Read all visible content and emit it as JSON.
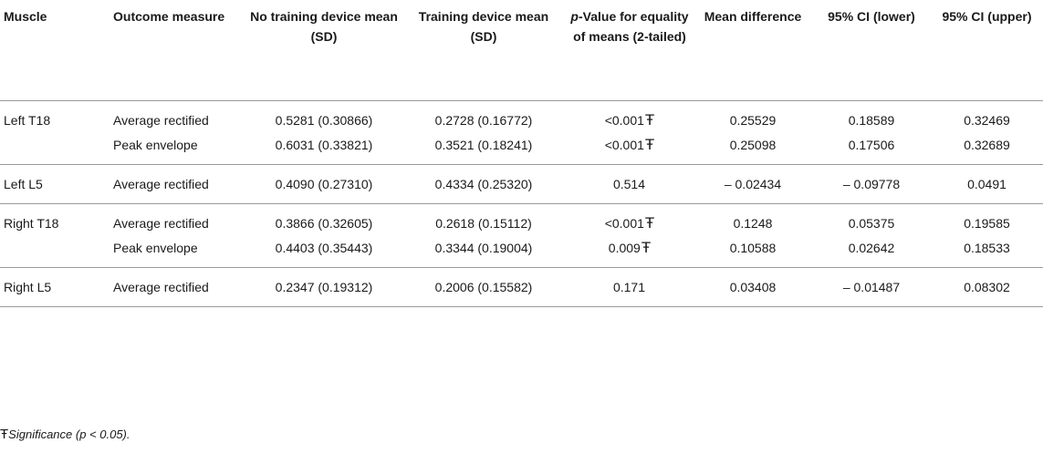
{
  "headers": {
    "muscle": "Muscle",
    "outcome": "Outcome measure",
    "no_training": "No training device mean (SD)",
    "training": "Training device mean (SD)",
    "p_prefix": "p",
    "p_rest": "-Value for equality of means (2-tailed)",
    "mean_diff": "Mean difference",
    "ci_lower": "95% CI (lower)",
    "ci_upper": "95% CI (upper)"
  },
  "sig_symbol": "Ŧ",
  "rows": [
    {
      "muscle": "Left T18",
      "outcome": "Average rectified",
      "no_training": "0.5281 (0.30866)",
      "training": "0.2728 (0.16772)",
      "p": "<0.001",
      "sig": "Ŧ",
      "mean_diff": "0.25529",
      "ci_lower": "0.18589",
      "ci_upper": "0.32469"
    },
    {
      "muscle": "",
      "outcome": "Peak envelope",
      "no_training": "0.6031 (0.33821)",
      "training": "0.3521 (0.18241)",
      "p": "<0.001",
      "sig": "Ŧ",
      "mean_diff": "0.25098",
      "ci_lower": "0.17506",
      "ci_upper": "0.32689"
    },
    {
      "muscle": "Left L5",
      "outcome": "Average rectified",
      "no_training": "0.4090 (0.27310)",
      "training": "0.4334 (0.25320)",
      "p": "0.514",
      "sig": "",
      "mean_diff": "– 0.02434",
      "ci_lower": "– 0.09778",
      "ci_upper": "0.0491"
    },
    {
      "muscle": "Right T18",
      "outcome": "Average rectified",
      "no_training": "0.3866 (0.32605)",
      "training": "0.2618 (0.15112)",
      "p": "<0.001",
      "sig": "Ŧ",
      "mean_diff": "0.1248",
      "ci_lower": "0.05375",
      "ci_upper": "0.19585"
    },
    {
      "muscle": "",
      "outcome": "Peak envelope",
      "no_training": "0.4403 (0.35443)",
      "training": "0.3344 (0.19004)",
      "p": "0.009",
      "sig": "Ŧ",
      "mean_diff": "0.10588",
      "ci_lower": "0.02642",
      "ci_upper": "0.18533"
    },
    {
      "muscle": "Right L5",
      "outcome": "Average rectified",
      "no_training": "0.2347 (0.19312)",
      "training": "0.2006 (0.15582)",
      "p": "0.171",
      "sig": "",
      "mean_diff": "0.03408",
      "ci_lower": "– 0.01487",
      "ci_upper": "0.08302"
    }
  ],
  "footnote": {
    "text": "Significance (p < 0.05)."
  }
}
